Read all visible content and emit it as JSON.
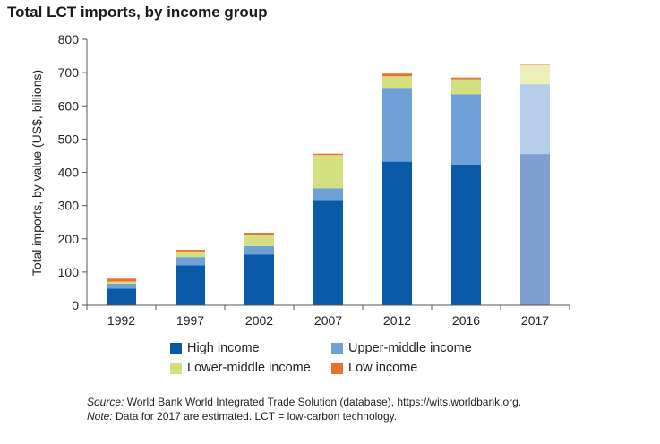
{
  "chart_data": {
    "type": "bar",
    "stacked": true,
    "title": "Total LCT imports, by income group",
    "ylabel": "Total imports, by value (US$, billions)",
    "xlabel": "",
    "ylim": [
      0,
      800
    ],
    "yticks": [
      0,
      100,
      200,
      300,
      400,
      500,
      600,
      700,
      800
    ],
    "categories": [
      "1992",
      "1997",
      "2002",
      "2007",
      "2012",
      "2016",
      "2017"
    ],
    "estimated_category": "2017",
    "series": [
      {
        "name": "High income",
        "color": "#0a5aa8",
        "estimated_color": "#7f9fd0",
        "values": [
          50,
          120,
          153,
          317,
          432,
          423,
          455
        ]
      },
      {
        "name": "Upper-middle income",
        "color": "#6fa1d8",
        "estimated_color": "#b6cde9",
        "values": [
          15,
          25,
          25,
          35,
          222,
          212,
          210
        ]
      },
      {
        "name": "Lower-middle income",
        "color": "#d4df7f",
        "estimated_color": "#ecefb8",
        "values": [
          6,
          17,
          33,
          100,
          35,
          45,
          57
        ]
      },
      {
        "name": "Low income",
        "color": "#e8712b",
        "estimated_color": "#f3b890",
        "values": [
          9,
          5,
          7,
          4,
          8,
          5,
          3
        ]
      }
    ],
    "grid": false,
    "legend_position": "bottom"
  },
  "notes": {
    "source_label": "Source:",
    "source_text": " World Bank World Integrated Trade Solution (database), https://wits.worldbank.org.",
    "note_label": "Note:",
    "note_text": " Data for 2017 are estimated. LCT = low-carbon technology."
  }
}
